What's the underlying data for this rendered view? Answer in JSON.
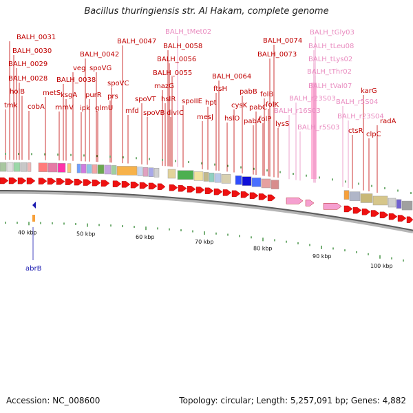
{
  "title": "Bacillus thuringiensis str. Al Hakam, complete genome",
  "footer": {
    "accession": "Accession: NC_008600",
    "summary": "Topology: circular; Length: 5,257,091 bp; Genes: 4,882"
  },
  "colors": {
    "gene_label": "#c00000",
    "rna_label": "#e98cc0",
    "reverse_label": "#1a1ab0",
    "gene_arrow": "#ee1111",
    "rna_arrow": "#f5a0d0",
    "backbone": "#8a8a8a",
    "tick": "#1a7a1a"
  },
  "scale_ticks": [
    "40 kbp",
    "50 kbp",
    "60 kbp",
    "70 kbp",
    "80 kbp",
    "90 kbp",
    "100 kbp"
  ],
  "forward_labels": [
    {
      "text": "BALH_0031",
      "kind": "gene"
    },
    {
      "text": "BALH_0030",
      "kind": "gene"
    },
    {
      "text": "BALH_0029",
      "kind": "gene"
    },
    {
      "text": "BALH_0028",
      "kind": "gene"
    },
    {
      "text": "holB",
      "kind": "gene"
    },
    {
      "text": "tmk",
      "kind": "gene"
    },
    {
      "text": "cobA",
      "kind": "gene"
    },
    {
      "text": "metS",
      "kind": "gene"
    },
    {
      "text": "rnmV",
      "kind": "gene"
    },
    {
      "text": "ksgA",
      "kind": "gene"
    },
    {
      "text": "BALH_0038",
      "kind": "gene"
    },
    {
      "text": "veg",
      "kind": "gene"
    },
    {
      "text": "ipk",
      "kind": "gene"
    },
    {
      "text": "purR",
      "kind": "gene"
    },
    {
      "text": "spoVG",
      "kind": "gene"
    },
    {
      "text": "BALH_0042",
      "kind": "gene"
    },
    {
      "text": "glmU",
      "kind": "gene"
    },
    {
      "text": "prs",
      "kind": "gene"
    },
    {
      "text": "spoVC",
      "kind": "gene"
    },
    {
      "text": "mfd",
      "kind": "gene"
    },
    {
      "text": "BALH_0047",
      "kind": "gene"
    },
    {
      "text": "spoVT",
      "kind": "gene"
    },
    {
      "text": "spoVB",
      "kind": "gene"
    },
    {
      "text": "mazG",
      "kind": "gene"
    },
    {
      "text": "BALH_tMet02",
      "kind": "rna"
    },
    {
      "text": "hslR",
      "kind": "gene"
    },
    {
      "text": "BALH_0058",
      "kind": "gene"
    },
    {
      "text": "BALH_0056",
      "kind": "gene"
    },
    {
      "text": "BALH_0055",
      "kind": "gene"
    },
    {
      "text": "divIC",
      "kind": "gene"
    },
    {
      "text": "spoIIE",
      "kind": "gene"
    },
    {
      "text": "mesJ",
      "kind": "gene"
    },
    {
      "text": "hpt",
      "kind": "gene"
    },
    {
      "text": "ftsH",
      "kind": "gene"
    },
    {
      "text": "BALH_0064",
      "kind": "gene"
    },
    {
      "text": "hslO",
      "kind": "gene"
    },
    {
      "text": "cysK",
      "kind": "gene"
    },
    {
      "text": "pabB",
      "kind": "gene"
    },
    {
      "text": "pabA",
      "kind": "gene"
    },
    {
      "text": "pabC",
      "kind": "gene"
    },
    {
      "text": "folB",
      "kind": "gene"
    },
    {
      "text": "folP",
      "kind": "gene"
    },
    {
      "text": "folK",
      "kind": "gene"
    },
    {
      "text": "BALH_0073",
      "kind": "gene"
    },
    {
      "text": "BALH_0074",
      "kind": "gene"
    },
    {
      "text": "lysS",
      "kind": "gene"
    },
    {
      "text": "BALH_r16S03",
      "kind": "rna"
    },
    {
      "text": "BALH_r23S03",
      "kind": "rna"
    },
    {
      "text": "BALH_r5S03",
      "kind": "rna"
    },
    {
      "text": "BALH_tVal07",
      "kind": "rna"
    },
    {
      "text": "BALH_tThr02",
      "kind": "rna"
    },
    {
      "text": "BALH_tLys02",
      "kind": "rna"
    },
    {
      "text": "BALH_tLeu08",
      "kind": "rna"
    },
    {
      "text": "BALH_tGly03",
      "kind": "rna"
    },
    {
      "text": "BALH_r5S04",
      "kind": "rna"
    },
    {
      "text": "BALH_r23S04",
      "kind": "rna"
    },
    {
      "text": "ctsR",
      "kind": "gene"
    },
    {
      "text": "karG",
      "kind": "gene"
    },
    {
      "text": "clpC",
      "kind": "gene"
    },
    {
      "text": "radA",
      "kind": "gene"
    }
  ],
  "reverse_labels": [
    {
      "text": "abrB",
      "kind": "reverse"
    }
  ]
}
